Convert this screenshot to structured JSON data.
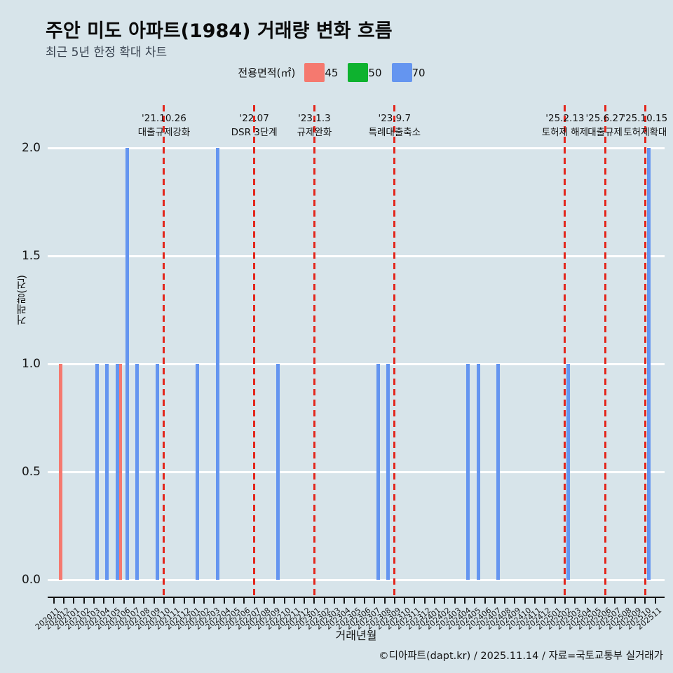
{
  "title": "주안 미도 아파트(1984) 거래량 변화 흐름",
  "subtitle": "최근 5년 한정 확대 차트",
  "legend": {
    "title": "전용면적(㎡)",
    "items": [
      {
        "label": "45",
        "color": "#f5796f"
      },
      {
        "label": "50",
        "color": "#0eb22f"
      },
      {
        "label": "70",
        "color": "#6495f0"
      }
    ]
  },
  "footer": "©디아파트(dapt.kr) / 2025.11.14 / 자료=국토교통부 실거래가",
  "chart_data": {
    "type": "bar",
    "title": "주안 미도 아파트(1984) 거래량 변화 흐름",
    "subtitle": "최근 5년 한정 확대 차트",
    "xlabel": "거래년월",
    "ylabel": "거래량(건)",
    "ylim": [
      0.0,
      2.0
    ],
    "yticks": [
      "0.0",
      "0.5",
      "1.0",
      "1.5",
      "2.0"
    ],
    "grid": "horizontal-white",
    "legend_position": "top-center",
    "categories": [
      "202011",
      "202012",
      "202101",
      "202102",
      "202103",
      "202104",
      "202105",
      "202106",
      "202107",
      "202108",
      "202109",
      "202110",
      "202111",
      "202112",
      "202201",
      "202202",
      "202203",
      "202204",
      "202205",
      "202206",
      "202207",
      "202208",
      "202209",
      "202210",
      "202211",
      "202212",
      "202301",
      "202302",
      "202303",
      "202304",
      "202305",
      "202306",
      "202307",
      "202308",
      "202309",
      "202310",
      "202311",
      "202312",
      "202401",
      "202402",
      "202403",
      "202404",
      "202405",
      "202406",
      "202407",
      "202408",
      "202409",
      "202410",
      "202411",
      "202412",
      "202501",
      "202502",
      "202503",
      "202504",
      "202505",
      "202506",
      "202507",
      "202508",
      "202509",
      "202510",
      "202511"
    ],
    "series": [
      {
        "name": "45",
        "color": "#f5796f",
        "points": {
          "202012": 1,
          "202106": 1
        }
      },
      {
        "name": "50",
        "color": "#0eb22f",
        "points": {}
      },
      {
        "name": "70",
        "color": "#6495f0",
        "points": {
          "202103": 1,
          "202104": 1,
          "202105": 1,
          "202106": 2,
          "202107": 1,
          "202109": 1,
          "202201": 1,
          "202203": 2,
          "202209": 1,
          "202307": 1,
          "202308": 1,
          "202404": 1,
          "202405": 1,
          "202407": 1,
          "202502": 1,
          "202510": 2
        }
      }
    ],
    "events": [
      {
        "date": "'21.10.26",
        "label": "대출규제강화",
        "month": "202110"
      },
      {
        "date": "'22.07",
        "label": "DSR 3단계",
        "month": "202207"
      },
      {
        "date": "'23.1.3",
        "label": "규제완화",
        "month": "202301"
      },
      {
        "date": "'23.9.7",
        "label": "특례대출축소",
        "month": "202309"
      },
      {
        "date": "'25.2.13",
        "label": "토허제 해제",
        "month": "202502"
      },
      {
        "date": "'25.6.27",
        "label": "대출규제",
        "month": "202506"
      },
      {
        "date": "'25.10.15",
        "label": "토허제확대",
        "month": "202510"
      }
    ],
    "event_line_color": "#e3261c",
    "colors": {
      "background": "#d7e4ea",
      "grid": "#ffffff",
      "axis": "#141414",
      "text": "#141414"
    }
  }
}
